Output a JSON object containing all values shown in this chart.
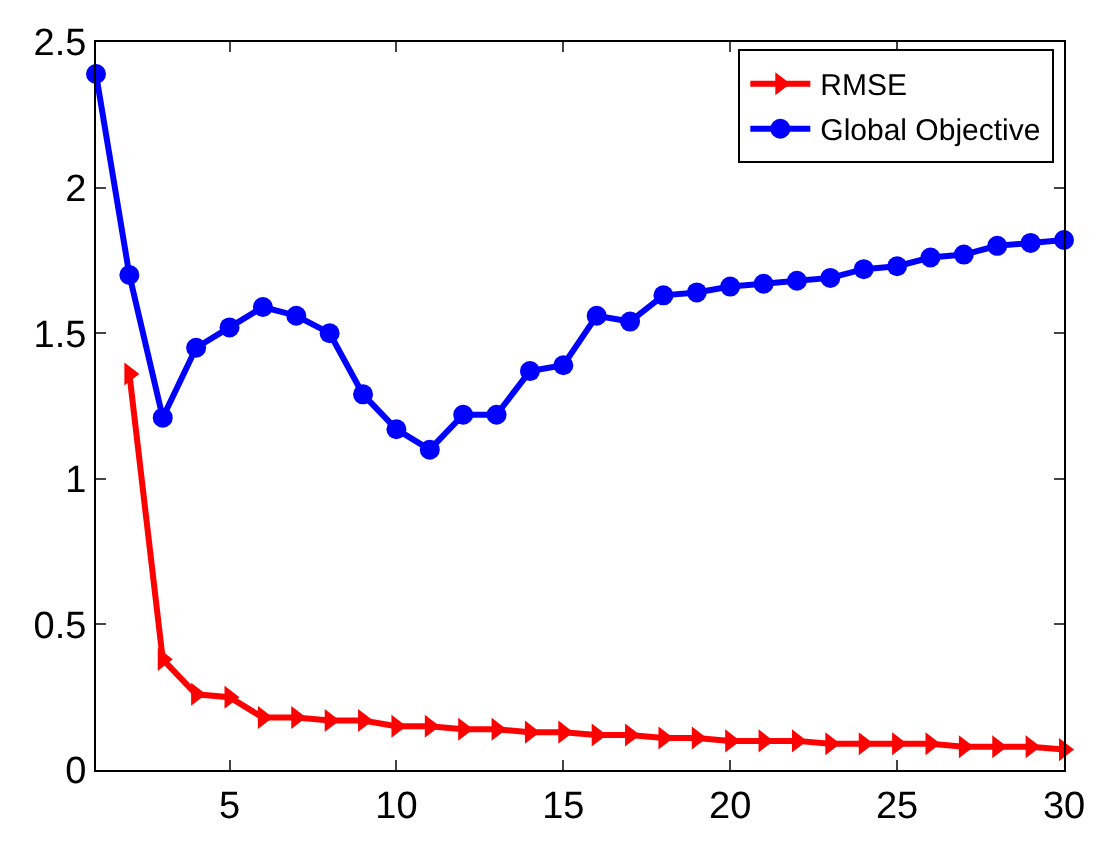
{
  "chart_data": {
    "type": "line",
    "xlim": [
      1,
      30
    ],
    "ylim": [
      0,
      2.5
    ],
    "xticks": [
      5,
      10,
      15,
      20,
      25,
      30
    ],
    "yticks": [
      0,
      0.5,
      1,
      1.5,
      2,
      2.5
    ],
    "legend": "top right",
    "series": [
      {
        "name": "RMSE",
        "color": "#ff0000",
        "marker": "triangle",
        "x": [
          2,
          3,
          4,
          5,
          6,
          7,
          8,
          9,
          10,
          11,
          12,
          13,
          14,
          15,
          16,
          17,
          18,
          19,
          20,
          21,
          22,
          23,
          24,
          25,
          26,
          27,
          28,
          29,
          30
        ],
        "values": [
          1.36,
          0.38,
          0.26,
          0.25,
          0.18,
          0.18,
          0.17,
          0.17,
          0.15,
          0.15,
          0.14,
          0.14,
          0.13,
          0.13,
          0.12,
          0.12,
          0.11,
          0.11,
          0.1,
          0.1,
          0.1,
          0.09,
          0.09,
          0.09,
          0.09,
          0.08,
          0.08,
          0.08,
          0.07
        ]
      },
      {
        "name": "Global Objective",
        "color": "#0000ff",
        "marker": "circle",
        "x": [
          1,
          2,
          3,
          4,
          5,
          6,
          7,
          8,
          9,
          10,
          11,
          12,
          13,
          14,
          15,
          16,
          17,
          18,
          19,
          20,
          21,
          22,
          23,
          24,
          25,
          26,
          27,
          28,
          29,
          30
        ],
        "values": [
          2.39,
          1.7,
          1.21,
          1.45,
          1.52,
          1.59,
          1.56,
          1.5,
          1.29,
          1.17,
          1.1,
          1.22,
          1.22,
          1.37,
          1.39,
          1.56,
          1.54,
          1.63,
          1.64,
          1.66,
          1.67,
          1.68,
          1.69,
          1.72,
          1.73,
          1.76,
          1.77,
          1.8,
          1.81,
          1.82
        ]
      }
    ]
  }
}
